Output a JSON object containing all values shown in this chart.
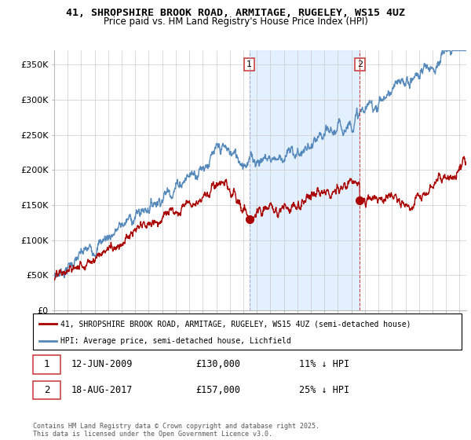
{
  "title1": "41, SHROPSHIRE BROOK ROAD, ARMITAGE, RUGELEY, WS15 4UZ",
  "title2": "Price paid vs. HM Land Registry's House Price Index (HPI)",
  "ylabel_ticks": [
    "£0",
    "£50K",
    "£100K",
    "£150K",
    "£200K",
    "£250K",
    "£300K",
    "£350K"
  ],
  "ytick_values": [
    0,
    50000,
    100000,
    150000,
    200000,
    250000,
    300000,
    350000
  ],
  "ylim": [
    0,
    370000
  ],
  "xlim_start": 1995.0,
  "xlim_end": 2025.5,
  "legend_line1": "41, SHROPSHIRE BROOK ROAD, ARMITAGE, RUGELEY, WS15 4UZ (semi-detached house)",
  "legend_line2": "HPI: Average price, semi-detached house, Lichfield",
  "sale1_year": 2009.44,
  "sale1_price": 130000,
  "sale2_year": 2017.62,
  "sale2_price": 157000,
  "sale1_table": "12-JUN-2009",
  "sale1_price_str": "£130,000",
  "sale1_hpi": "11% ↓ HPI",
  "sale2_table": "18-AUG-2017",
  "sale2_price_str": "£157,000",
  "sale2_hpi": "25% ↓ HPI",
  "color_red": "#aa0000",
  "color_blue": "#5588bb",
  "color_shade": "#ddeeff",
  "color_grid": "#cccccc",
  "color_vline1": "#aaaacc",
  "color_vline2": "#cc4444",
  "footnote": "Contains HM Land Registry data © Crown copyright and database right 2025.\nThis data is licensed under the Open Government Licence v3.0.",
  "background_color": "#ffffff"
}
